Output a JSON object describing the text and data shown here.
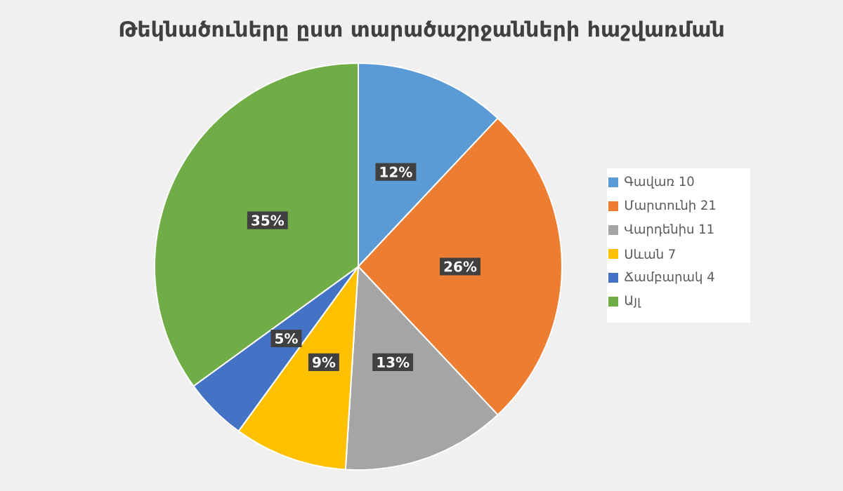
{
  "chart_data": {
    "type": "pie",
    "title": "Թեկնածուները ըստ տարածաշրջանների հաշվառման",
    "categories": [
      "Գավառ 10",
      "Մարտունի 21",
      "Վարդենիս 11",
      "Սևան 7",
      "Ճամբարակ 4",
      "Այլ"
    ],
    "values": [
      12,
      26,
      13,
      9,
      5,
      35
    ],
    "value_labels": [
      "12%",
      "26%",
      "13%",
      "9%",
      "5%",
      "35%"
    ],
    "colors": [
      "#5b9bd5",
      "#ed7d31",
      "#a5a5a5",
      "#ffc000",
      "#4472c4",
      "#70ad47"
    ],
    "legend": "right"
  }
}
